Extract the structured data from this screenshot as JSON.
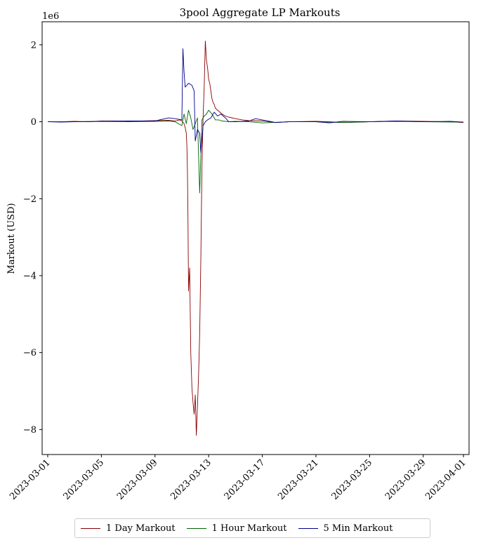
{
  "chart_data": {
    "type": "line",
    "title": "3pool Aggregate LP Markouts",
    "xlabel": "",
    "ylabel": "Markout (USD)",
    "y_offset_label": "1e6",
    "y_scale": 1000000,
    "x_is_date": true,
    "xlim": [
      "2023-02-28T14:00",
      "2023-04-01T10:00"
    ],
    "ylim": [
      -8.65,
      2.6
    ],
    "x_ticks": [
      "2023-03-01",
      "2023-03-05",
      "2023-03-09",
      "2023-03-13",
      "2023-03-17",
      "2023-03-21",
      "2023-03-25",
      "2023-03-29",
      "2023-04-01"
    ],
    "y_ticks": [
      2,
      0,
      -2,
      -4,
      -6,
      -8
    ],
    "y_tick_labels": [
      "2",
      "0",
      "−2",
      "−4",
      "−6",
      "−8"
    ],
    "legend_position": "bottom-center-outside",
    "series": [
      {
        "name": "1 Day Markout",
        "color": "#8b0000",
        "x": [
          "2023-03-01T00:00",
          "2023-03-02T00:00",
          "2023-03-03T00:00",
          "2023-03-04T00:00",
          "2023-03-05T00:00",
          "2023-03-06T00:00",
          "2023-03-07T00:00",
          "2023-03-08T00:00",
          "2023-03-09T00:00",
          "2023-03-10T00:00",
          "2023-03-10T12:00",
          "2023-03-10T20:00",
          "2023-03-11T00:00",
          "2023-03-11T04:00",
          "2023-03-11T06:00",
          "2023-03-11T08:00",
          "2023-03-11T09:00",
          "2023-03-11T10:00",
          "2023-03-11T11:00",
          "2023-03-11T12:00",
          "2023-03-11T14:00",
          "2023-03-11T16:00",
          "2023-03-11T18:00",
          "2023-03-11T20:00",
          "2023-03-11T22:00",
          "2023-03-12T00:00",
          "2023-03-12T02:00",
          "2023-03-12T04:00",
          "2023-03-12T06:00",
          "2023-03-12T08:00",
          "2023-03-12T10:00",
          "2023-03-12T12:00",
          "2023-03-12T14:00",
          "2023-03-12T16:00",
          "2023-03-12T18:00",
          "2023-03-12T20:00",
          "2023-03-12T22:00",
          "2023-03-13T00:00",
          "2023-03-13T02:00",
          "2023-03-13T04:00",
          "2023-03-13T06:00",
          "2023-03-13T08:00",
          "2023-03-13T10:00",
          "2023-03-13T12:00",
          "2023-03-13T16:00",
          "2023-03-13T20:00",
          "2023-03-14T00:00",
          "2023-03-14T06:00",
          "2023-03-14T12:00",
          "2023-03-15T00:00",
          "2023-03-15T12:00",
          "2023-03-16T00:00",
          "2023-03-17T00:00",
          "2023-03-18T00:00",
          "2023-03-19T00:00",
          "2023-03-21T00:00",
          "2023-03-22T00:00",
          "2023-03-23T00:00",
          "2023-03-25T00:00",
          "2023-03-27T00:00",
          "2023-03-29T00:00",
          "2023-03-31T00:00",
          "2023-04-01T00:00"
        ],
        "values": [
          0.0,
          0.0,
          0.01,
          0.0,
          0.02,
          0.02,
          0.01,
          0.02,
          0.03,
          0.04,
          0.02,
          0.05,
          0.02,
          -0.05,
          -0.15,
          -0.3,
          -0.6,
          -1.2,
          -2.5,
          -4.4,
          -3.8,
          -6.0,
          -6.9,
          -7.3,
          -7.6,
          -7.1,
          -8.15,
          -7.4,
          -6.6,
          -5.5,
          -3.6,
          -1.2,
          0.1,
          0.9,
          2.1,
          1.6,
          1.4,
          1.1,
          1.0,
          0.8,
          0.6,
          0.5,
          0.45,
          0.35,
          0.3,
          0.25,
          0.2,
          0.15,
          0.12,
          0.08,
          0.05,
          0.03,
          0.02,
          -0.02,
          0.0,
          0.01,
          0.0,
          -0.02,
          0.0,
          0.02,
          0.01,
          0.0,
          -0.02
        ]
      },
      {
        "name": "1 Hour Markout",
        "color": "#006400",
        "x": [
          "2023-03-01T00:00",
          "2023-03-03T00:00",
          "2023-03-05T00:00",
          "2023-03-07T00:00",
          "2023-03-09T00:00",
          "2023-03-10T00:00",
          "2023-03-10T12:00",
          "2023-03-11T00:00",
          "2023-03-11T04:00",
          "2023-03-11T08:00",
          "2023-03-11T12:00",
          "2023-03-11T16:00",
          "2023-03-11T20:00",
          "2023-03-12T00:00",
          "2023-03-12T04:00",
          "2023-03-12T08:00",
          "2023-03-12T12:00",
          "2023-03-12T16:00",
          "2023-03-12T20:00",
          "2023-03-13T00:00",
          "2023-03-13T06:00",
          "2023-03-13T12:00",
          "2023-03-13T18:00",
          "2023-03-14T00:00",
          "2023-03-14T12:00",
          "2023-03-15T00:00",
          "2023-03-16T00:00",
          "2023-03-17T00:00",
          "2023-03-19T00:00",
          "2023-03-21T00:00",
          "2023-03-23T00:00",
          "2023-03-25T00:00",
          "2023-03-27T00:00",
          "2023-03-29T00:00",
          "2023-04-01T00:00"
        ],
        "values": [
          0.0,
          0.0,
          0.01,
          0.0,
          0.01,
          0.02,
          0.0,
          -0.1,
          0.2,
          -0.05,
          0.3,
          0.1,
          -0.2,
          -0.05,
          0.1,
          -1.85,
          0.05,
          0.15,
          0.2,
          0.3,
          0.2,
          0.05,
          0.05,
          0.02,
          0.0,
          0.01,
          0.0,
          -0.03,
          0.0,
          0.0,
          -0.02,
          0.0,
          0.01,
          0.0,
          -0.01
        ]
      },
      {
        "name": "5 Min Markout",
        "color": "#00008b",
        "x": [
          "2023-03-01T00:00",
          "2023-03-02T00:00",
          "2023-03-03T00:00",
          "2023-03-05T00:00",
          "2023-03-07T00:00",
          "2023-03-09T00:00",
          "2023-03-09T08:00",
          "2023-03-10T00:00",
          "2023-03-10T12:00",
          "2023-03-11T00:00",
          "2023-03-11T02:00",
          "2023-03-11T04:00",
          "2023-03-11T06:00",
          "2023-03-11T12:00",
          "2023-03-11T18:00",
          "2023-03-11T22:00",
          "2023-03-12T00:00",
          "2023-03-12T04:00",
          "2023-03-12T08:00",
          "2023-03-12T10:00",
          "2023-03-12T14:00",
          "2023-03-12T18:00",
          "2023-03-12T22:00",
          "2023-03-13T04:00",
          "2023-03-13T10:00",
          "2023-03-13T16:00",
          "2023-03-13T22:00",
          "2023-03-14T06:00",
          "2023-03-14T12:00",
          "2023-03-15T00:00",
          "2023-03-16T00:00",
          "2023-03-16T12:00",
          "2023-03-17T00:00",
          "2023-03-18T00:00",
          "2023-03-19T00:00",
          "2023-03-21T00:00",
          "2023-03-22T00:00",
          "2023-03-23T00:00",
          "2023-03-25T00:00",
          "2023-03-27T00:00",
          "2023-03-29T00:00",
          "2023-03-31T00:00",
          "2023-04-01T00:00"
        ],
        "values": [
          0.0,
          -0.01,
          0.0,
          0.01,
          0.02,
          0.02,
          0.05,
          0.1,
          0.08,
          0.05,
          1.9,
          1.3,
          0.9,
          1.0,
          0.95,
          0.8,
          -0.5,
          -0.2,
          -0.3,
          -0.8,
          -0.1,
          0.0,
          0.05,
          0.1,
          0.25,
          0.15,
          0.2,
          0.1,
          0.0,
          0.0,
          0.02,
          0.08,
          0.05,
          -0.02,
          0.0,
          0.0,
          -0.03,
          0.01,
          0.0,
          0.02,
          0.0,
          0.01,
          -0.01
        ]
      }
    ]
  }
}
